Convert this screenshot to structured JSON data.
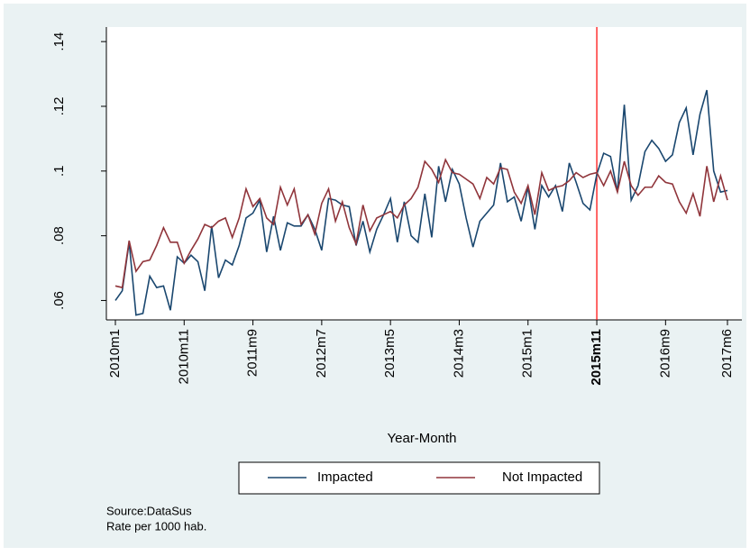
{
  "chart_data": {
    "type": "line",
    "x_label": "Year-Month",
    "notes": [
      "Source:DataSus",
      "Rate per 1000 hab."
    ],
    "categories": [
      "2010m1",
      null,
      null,
      null,
      null,
      null,
      null,
      null,
      null,
      null,
      "2010m11",
      null,
      null,
      null,
      null,
      null,
      null,
      null,
      null,
      null,
      "2011m9",
      null,
      null,
      null,
      null,
      null,
      null,
      null,
      null,
      null,
      "2012m7",
      null,
      null,
      null,
      null,
      null,
      null,
      null,
      null,
      null,
      "2013m5",
      null,
      null,
      null,
      null,
      null,
      null,
      null,
      null,
      null,
      "2014m3",
      null,
      null,
      null,
      null,
      null,
      null,
      null,
      null,
      null,
      "2015m1",
      null,
      null,
      null,
      null,
      null,
      null,
      null,
      null,
      null,
      "2015m11",
      null,
      null,
      null,
      null,
      null,
      null,
      null,
      null,
      null,
      "2016m9",
      null,
      null,
      null,
      null,
      null,
      null,
      null,
      null,
      "2017m6"
    ],
    "series": [
      {
        "name": "Impacted",
        "color": "#1a476f",
        "values": [
          0.06,
          0.063,
          0.078,
          0.0555,
          0.056,
          0.0675,
          0.064,
          0.0645,
          0.057,
          0.0735,
          0.0715,
          0.074,
          0.072,
          0.063,
          0.083,
          0.067,
          0.0725,
          0.071,
          0.077,
          0.0855,
          0.087,
          0.091,
          0.075,
          0.086,
          0.0755,
          0.084,
          0.083,
          0.083,
          0.0865,
          0.082,
          0.0755,
          0.0915,
          0.091,
          0.0895,
          0.089,
          0.077,
          0.0845,
          0.075,
          0.082,
          0.0865,
          0.0915,
          0.078,
          0.0905,
          0.08,
          0.078,
          0.093,
          0.0795,
          0.1015,
          0.0905,
          0.1005,
          0.096,
          0.0855,
          0.0765,
          0.0845,
          0.087,
          0.0895,
          0.1025,
          0.0905,
          0.092,
          0.0845,
          0.095,
          0.082,
          0.0955,
          0.092,
          0.0955,
          0.0875,
          0.1025,
          0.0965,
          0.09,
          0.088,
          0.099,
          0.1055,
          0.1045,
          0.0935,
          0.1205,
          0.091,
          0.0955,
          0.106,
          0.1095,
          0.107,
          0.103,
          0.105,
          0.115,
          0.1195,
          0.105,
          0.1175,
          0.125,
          0.1,
          0.0935,
          0.094
        ]
      },
      {
        "name": "Not Impacted",
        "color": "#90353b",
        "values": [
          0.0645,
          0.064,
          0.0785,
          0.069,
          0.072,
          0.0725,
          0.077,
          0.0825,
          0.078,
          0.078,
          0.0715,
          0.0755,
          0.079,
          0.0835,
          0.0825,
          0.0845,
          0.0855,
          0.0795,
          0.0855,
          0.0945,
          0.089,
          0.0915,
          0.0855,
          0.0835,
          0.095,
          0.0895,
          0.0945,
          0.0835,
          0.0865,
          0.0805,
          0.09,
          0.0945,
          0.0845,
          0.0905,
          0.0825,
          0.0775,
          0.0895,
          0.0815,
          0.0855,
          0.0865,
          0.0875,
          0.0855,
          0.0895,
          0.0915,
          0.095,
          0.103,
          0.1005,
          0.0965,
          0.1035,
          0.0995,
          0.099,
          0.0975,
          0.096,
          0.0915,
          0.098,
          0.096,
          0.101,
          0.1005,
          0.0935,
          0.09,
          0.0955,
          0.0865,
          0.0995,
          0.094,
          0.095,
          0.0955,
          0.097,
          0.0995,
          0.098,
          0.099,
          0.0995,
          0.0955,
          0.1,
          0.0935,
          0.103,
          0.0955,
          0.0925,
          0.095,
          0.095,
          0.0985,
          0.0965,
          0.096,
          0.0905,
          0.087,
          0.093,
          0.086,
          0.1015,
          0.0905,
          0.0985,
          0.091
        ]
      }
    ],
    "ylim": [
      0.054,
      0.1445
    ],
    "yticks": [
      {
        "value": 0.06,
        "label": ".06"
      },
      {
        "value": 0.08,
        "label": ".08"
      },
      {
        "value": 0.1,
        "label": ".1"
      },
      {
        "value": 0.12,
        "label": ".12"
      },
      {
        "value": 0.14,
        "label": ".14"
      }
    ],
    "grid": false,
    "reference_line": {
      "category_index": 70,
      "color": "#ff0000"
    },
    "legend": "bottom"
  }
}
